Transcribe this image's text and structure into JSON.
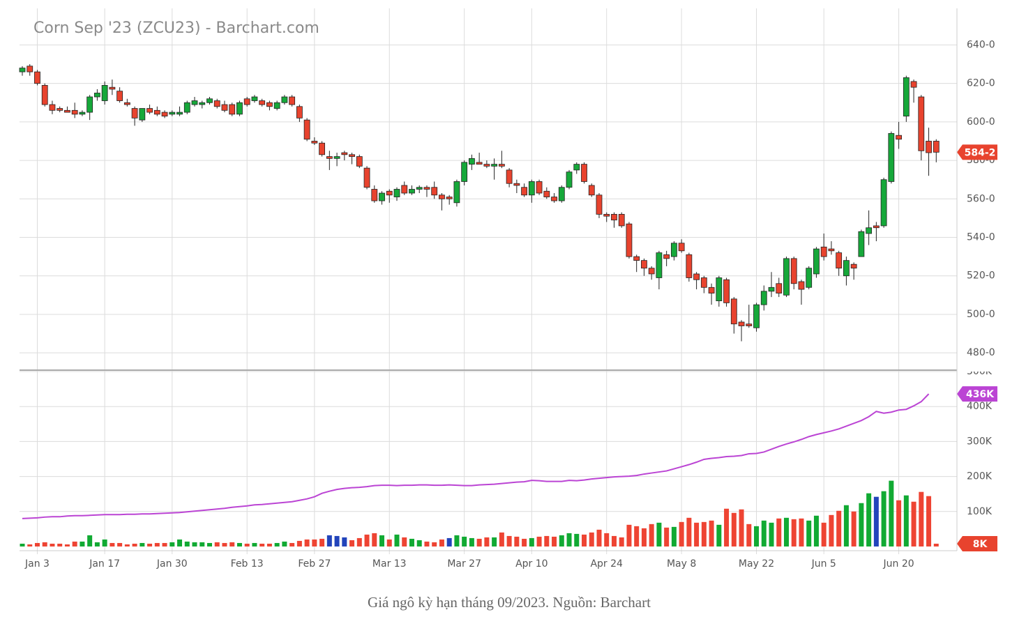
{
  "chart_data": [
    {
      "type": "candlestick",
      "title": "Corn Sep '23 (ZCU23) - Barchart.com",
      "categories": [
        null,
        null,
        "Jan 3",
        null,
        null,
        null,
        null,
        null,
        null,
        null,
        null,
        "Jan 17",
        null,
        null,
        null,
        null,
        null,
        null,
        null,
        null,
        "Jan 30",
        null,
        null,
        null,
        null,
        null,
        null,
        null,
        null,
        null,
        "Feb 13",
        null,
        null,
        null,
        null,
        null,
        null,
        null,
        null,
        "Feb 27",
        null,
        null,
        null,
        null,
        null,
        null,
        null,
        null,
        null,
        "Mar 13",
        null,
        null,
        null,
        null,
        null,
        null,
        null,
        null,
        null,
        "Mar 27",
        null,
        null,
        null,
        null,
        null,
        null,
        null,
        null,
        "Apr 10",
        null,
        null,
        null,
        null,
        null,
        null,
        null,
        null,
        null,
        "Apr 24",
        null,
        null,
        null,
        null,
        null,
        null,
        null,
        null,
        null,
        "May 8",
        null,
        null,
        null,
        null,
        null,
        null,
        null,
        null,
        null,
        "May 22",
        null,
        null,
        null,
        null,
        null,
        null,
        null,
        null,
        "Jun 5",
        null,
        null,
        null,
        null,
        null,
        null,
        null,
        null,
        null,
        "Jun 20",
        null,
        null,
        null,
        null,
        null
      ],
      "open": [
        626,
        629,
        626,
        619,
        609,
        607,
        606,
        606,
        604,
        605,
        613,
        611,
        618,
        616,
        610,
        607,
        601,
        607,
        606,
        605,
        604,
        604,
        605,
        609,
        609,
        610,
        611,
        609,
        609,
        604,
        612,
        611,
        611,
        610,
        607,
        610,
        613,
        608,
        601,
        590,
        589,
        582,
        581,
        584,
        583,
        582,
        576,
        565,
        559,
        564,
        561,
        567,
        563,
        565,
        566,
        566,
        562,
        561,
        558,
        569,
        578,
        579,
        578,
        577,
        578,
        575,
        568,
        566,
        562,
        569,
        564,
        561,
        559,
        566,
        575,
        578,
        567,
        562,
        552,
        552,
        552,
        547,
        530,
        528,
        524,
        519,
        531,
        530,
        537,
        531,
        521,
        519,
        514,
        507,
        518,
        508,
        496,
        495,
        493,
        505,
        512,
        516,
        510,
        529,
        517,
        514,
        521,
        535,
        534,
        532,
        520,
        526,
        530,
        542,
        546,
        546,
        569,
        593,
        603,
        621,
        613,
        590,
        590
      ],
      "high": [
        629,
        630,
        627,
        620,
        611,
        608,
        608,
        610,
        606,
        614,
        617,
        621,
        622,
        618,
        612,
        608,
        607,
        609,
        608,
        606,
        606,
        608,
        611,
        613,
        611,
        613,
        612,
        611,
        610,
        611,
        613,
        614,
        612,
        611,
        611,
        614,
        614,
        609,
        602,
        592,
        590,
        585,
        584,
        585,
        584,
        583,
        577,
        567,
        564,
        565,
        566,
        569,
        567,
        567,
        567,
        569,
        563,
        562,
        570,
        580,
        583,
        584,
        580,
        581,
        585,
        576,
        570,
        568,
        570,
        570,
        566,
        563,
        567,
        575,
        579,
        579,
        568,
        563,
        553,
        553,
        553,
        548,
        531,
        529,
        525,
        533,
        533,
        538,
        539,
        532,
        522,
        520,
        516,
        520,
        519,
        509,
        497,
        505,
        506,
        515,
        522,
        519,
        530,
        530,
        518,
        525,
        535,
        542,
        538,
        533,
        530,
        527,
        544,
        554,
        548,
        571,
        595,
        600,
        624,
        622,
        614,
        597,
        591
      ],
      "low": [
        624,
        624,
        619,
        608,
        604,
        605,
        605,
        602,
        603,
        601,
        611,
        609,
        614,
        610,
        608,
        598,
        600,
        604,
        603,
        602,
        603,
        603,
        604,
        608,
        607,
        609,
        607,
        605,
        603,
        603,
        608,
        610,
        608,
        606,
        606,
        609,
        608,
        600,
        590,
        588,
        582,
        575,
        577,
        580,
        578,
        576,
        565,
        558,
        557,
        558,
        559,
        562,
        562,
        563,
        561,
        560,
        554,
        557,
        556,
        567,
        575,
        578,
        576,
        570,
        576,
        566,
        563,
        561,
        558,
        562,
        560,
        558,
        558,
        565,
        573,
        568,
        561,
        550,
        548,
        545,
        545,
        529,
        522,
        520,
        518,
        513,
        525,
        528,
        532,
        517,
        513,
        511,
        505,
        504,
        504,
        490,
        486,
        493,
        491,
        502,
        509,
        509,
        509,
        513,
        505,
        513,
        519,
        528,
        531,
        520,
        515,
        518,
        530,
        536,
        538,
        545,
        568,
        586,
        600,
        610,
        580,
        572,
        579
      ],
      "close": [
        628,
        626,
        620,
        609,
        606,
        606,
        605,
        604,
        605,
        613,
        615,
        619,
        617,
        611,
        609,
        602,
        607,
        605,
        604,
        603,
        605,
        605,
        610,
        611,
        610,
        612,
        608,
        606,
        604,
        610,
        609,
        613,
        609,
        608,
        610,
        613,
        609,
        602,
        591,
        589,
        583,
        581,
        582,
        583,
        582,
        577,
        566,
        559,
        563,
        562,
        565,
        563,
        565,
        566,
        565,
        562,
        560,
        560,
        569,
        579,
        581,
        578,
        577,
        578,
        577,
        568,
        567,
        562,
        569,
        563,
        561,
        559,
        566,
        574,
        578,
        569,
        562,
        552,
        551,
        549,
        546,
        530,
        528,
        524,
        521,
        532,
        529,
        537,
        533,
        519,
        518,
        514,
        511,
        519,
        506,
        495,
        494,
        494,
        505,
        512,
        514,
        511,
        529,
        516,
        513,
        524,
        534,
        530,
        533,
        524,
        528,
        524,
        543,
        545,
        545,
        570,
        594,
        591,
        623,
        618,
        585,
        584,
        584.25
      ],
      "up_color": "#16a83a",
      "down_color": "#e8432e",
      "ylim": [
        471,
        659
      ],
      "yticks": [
        {
          "value": 480,
          "label": "480-0"
        },
        {
          "value": 500,
          "label": "500-0"
        },
        {
          "value": 520,
          "label": "520-0"
        },
        {
          "value": 540,
          "label": "540-0"
        },
        {
          "value": 560,
          "label": "560-0"
        },
        {
          "value": 580,
          "label": "580-0"
        },
        {
          "value": 600,
          "label": "600-0"
        },
        {
          "value": 620,
          "label": "620-0"
        },
        {
          "value": 640,
          "label": "640-0"
        }
      ],
      "grid": true,
      "last_price": {
        "value": 584.25,
        "label": "584-2",
        "color": "#e8432e"
      }
    },
    {
      "type": "bar",
      "series": [
        {
          "type": "bar",
          "values": [
            8000,
            6000,
            10000,
            12000,
            8000,
            8000,
            6000,
            14000,
            14000,
            32000,
            12000,
            20000,
            10000,
            10000,
            6000,
            8000,
            10000,
            8000,
            10000,
            10000,
            12000,
            20000,
            14000,
            12000,
            12000,
            10000,
            12000,
            10000,
            12000,
            10000,
            8000,
            10000,
            8000,
            8000,
            10000,
            14000,
            10000,
            16000,
            20000,
            20000,
            22000,
            32000,
            30000,
            26000,
            18000,
            24000,
            34000,
            38000,
            32000,
            20000,
            34000,
            26000,
            22000,
            18000,
            14000,
            12000,
            20000,
            24000,
            32000,
            28000,
            24000,
            22000,
            26000,
            26000,
            40000,
            30000,
            28000,
            22000,
            24000,
            28000,
            30000,
            28000,
            32000,
            38000,
            36000,
            34000,
            40000,
            48000,
            38000,
            30000,
            26000,
            62000,
            58000,
            52000,
            64000,
            68000,
            54000,
            56000,
            70000,
            82000,
            68000,
            70000,
            74000,
            62000,
            108000,
            96000,
            106000,
            64000,
            58000,
            74000,
            68000,
            80000,
            82000,
            78000,
            80000,
            74000,
            88000,
            68000,
            90000,
            102000,
            118000,
            100000,
            124000,
            152000,
            142000,
            158000,
            188000,
            132000,
            146000,
            128000,
            156000,
            144000,
            8000
          ],
          "colors": [
            "#1a3",
            "#e43",
            "#e43",
            "#e43",
            "#e43",
            "#e43",
            "#e43",
            "#e43",
            "#1a3",
            "#1a3",
            "#1a3",
            "#1a3",
            "#e43",
            "#e43",
            "#e43",
            "#e43",
            "#1a3",
            "#e43",
            "#e43",
            "#e43",
            "#1a3",
            "#1a3",
            "#1a3",
            "#1a3",
            "#1a3",
            "#1a3",
            "#e43",
            "#e43",
            "#e43",
            "#1a3",
            "#e43",
            "#1a3",
            "#e43",
            "#e43",
            "#1a3",
            "#1a3",
            "#e43",
            "#e43",
            "#e43",
            "#e43",
            "#e43",
            "#24b",
            "#24b",
            "#24b",
            "#e43",
            "#e43",
            "#e43",
            "#e43",
            "#1a3",
            "#e43",
            "#1a3",
            "#e43",
            "#1a3",
            "#1a3",
            "#e43",
            "#e43",
            "#e43",
            "#24b",
            "#1a3",
            "#1a3",
            "#1a3",
            "#e43",
            "#e43",
            "#1a3",
            "#e43",
            "#e43",
            "#e43",
            "#e43",
            "#1a3",
            "#e43",
            "#e43",
            "#e43",
            "#1a3",
            "#1a3",
            "#1a3",
            "#e43",
            "#e43",
            "#e43",
            "#e43",
            "#e43",
            "#e43",
            "#e43",
            "#e43",
            "#e43",
            "#e43",
            "#1a3",
            "#e43",
            "#1a3",
            "#e43",
            "#e43",
            "#e43",
            "#e43",
            "#e43",
            "#1a3",
            "#e43",
            "#e43",
            "#e43",
            "#e43",
            "#1a3",
            "#1a3",
            "#1a3",
            "#e43",
            "#1a3",
            "#e43",
            "#e43",
            "#1a3",
            "#1a3",
            "#e43",
            "#e43",
            "#e43",
            "#1a3",
            "#e43",
            "#1a3",
            "#1a3",
            "#24b",
            "#1a3",
            "#1a3",
            "#e43",
            "#1a3",
            "#e43",
            "#e43",
            "#e43",
            "#e43"
          ]
        },
        {
          "type": "line",
          "color": "#bb44d4",
          "values": [
            80000,
            81000,
            82000,
            84000,
            85000,
            85000,
            87000,
            88000,
            88000,
            89000,
            90000,
            91000,
            91000,
            91000,
            92000,
            92000,
            93000,
            93000,
            94000,
            95000,
            96000,
            97000,
            99000,
            101000,
            103000,
            105000,
            107000,
            109000,
            112000,
            114000,
            116000,
            119000,
            120000,
            122000,
            124000,
            126000,
            128000,
            132000,
            136000,
            142000,
            152000,
            158000,
            163000,
            166000,
            168000,
            169000,
            171000,
            174000,
            175000,
            175000,
            174000,
            175000,
            175000,
            176000,
            176000,
            175000,
            175000,
            176000,
            175000,
            174000,
            174000,
            176000,
            177000,
            178000,
            180000,
            182000,
            184000,
            185000,
            189000,
            188000,
            186000,
            186000,
            186000,
            189000,
            188000,
            190000,
            193000,
            195000,
            197000,
            199000,
            200000,
            201000,
            203000,
            207000,
            210000,
            213000,
            216000,
            222000,
            228000,
            234000,
            241000,
            249000,
            252000,
            254000,
            257000,
            258000,
            260000,
            265000,
            266000,
            270000,
            278000,
            286000,
            293000,
            299000,
            306000,
            314000,
            320000,
            325000,
            330000,
            336000,
            344000,
            352000,
            360000,
            371000,
            386000,
            381000,
            384000,
            390000,
            392000,
            402000,
            414000,
            436000,
            null
          ]
        }
      ],
      "ylim": [
        -12000,
        500000
      ],
      "yticks": [
        {
          "value": 100000,
          "label": "100K"
        },
        {
          "value": 200000,
          "label": "200K"
        },
        {
          "value": 300000,
          "label": "300K"
        },
        {
          "value": 400000,
          "label": "400K"
        },
        {
          "value": 500000,
          "label": "500K"
        }
      ],
      "grid": true,
      "tags": [
        {
          "value": 436000,
          "label": "436K",
          "color": "#bb44d4"
        },
        {
          "value": 8000,
          "label": "8K",
          "color": "#e8432e"
        }
      ]
    }
  ],
  "caption": "Giá ngô kỳ hạn tháng 09/2023. Nguồn: Barchart"
}
